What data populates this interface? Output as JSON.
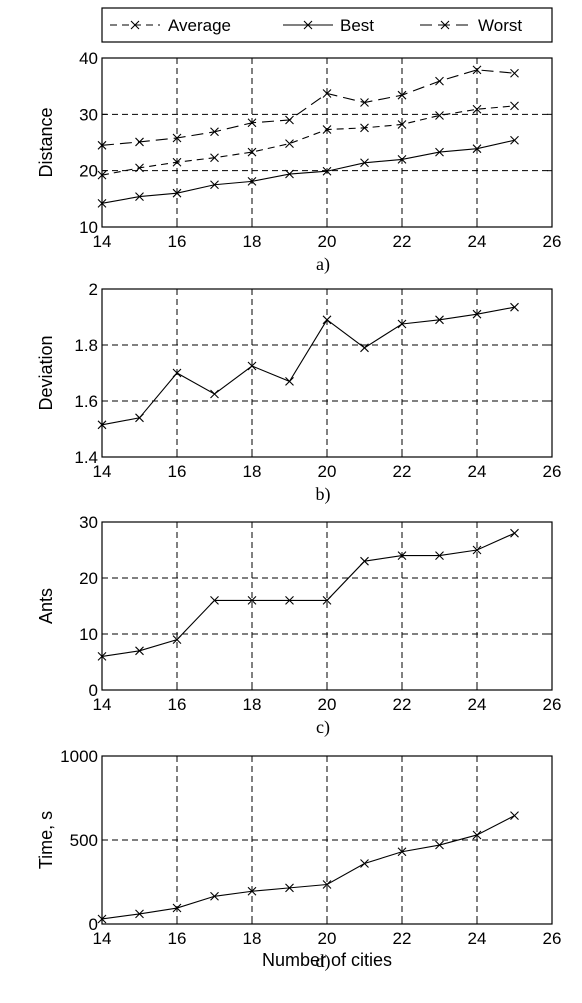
{
  "chart_data": [
    {
      "type": "line",
      "caption": "a)",
      "ylabel": "Distance",
      "xlim": [
        14,
        26
      ],
      "ylim": [
        10,
        40
      ],
      "xticks": [
        14,
        16,
        18,
        20,
        22,
        24,
        26
      ],
      "yticks": [
        10,
        20,
        30,
        40
      ],
      "grid": true,
      "legend": "top",
      "x": [
        14,
        15,
        16,
        17,
        18,
        19,
        20,
        21,
        22,
        23,
        24,
        25
      ],
      "series": [
        {
          "name": "Average",
          "style": "dashed",
          "values": [
            19.2,
            20.5,
            21.5,
            22.3,
            23.3,
            24.8,
            27.3,
            27.6,
            28.2,
            29.8,
            30.9,
            31.5
          ]
        },
        {
          "name": "Best",
          "style": "solid",
          "values": [
            14.2,
            15.4,
            16.0,
            17.5,
            18.1,
            19.4,
            19.9,
            21.4,
            22.0,
            23.3,
            23.9,
            25.4
          ]
        },
        {
          "name": "Worst",
          "style": "dashed-long",
          "values": [
            24.5,
            25.1,
            25.8,
            26.9,
            28.5,
            29.0,
            33.7,
            32.1,
            33.4,
            35.9,
            37.9,
            37.3
          ]
        }
      ]
    },
    {
      "type": "line",
      "caption": "b)",
      "ylabel": "Deviation",
      "xlim": [
        14,
        26
      ],
      "ylim": [
        1.4,
        2
      ],
      "xticks": [
        14,
        16,
        18,
        20,
        22,
        24,
        26
      ],
      "yticks": [
        1.4,
        1.6,
        1.8,
        2
      ],
      "ytick_labels": [
        "1.4",
        "1.6",
        "1.8",
        "2"
      ],
      "grid": true,
      "x": [
        14,
        15,
        16,
        17,
        18,
        19,
        20,
        21,
        22,
        23,
        24,
        25
      ],
      "series": [
        {
          "style": "solid",
          "values": [
            1.515,
            1.54,
            1.7,
            1.625,
            1.725,
            1.67,
            1.89,
            1.79,
            1.875,
            1.89,
            1.91,
            1.935
          ]
        }
      ]
    },
    {
      "type": "line",
      "caption": "c)",
      "ylabel": "Ants",
      "xlim": [
        14,
        26
      ],
      "ylim": [
        0,
        30
      ],
      "xticks": [
        14,
        16,
        18,
        20,
        22,
        24,
        26
      ],
      "yticks": [
        0,
        10,
        20,
        30
      ],
      "grid": true,
      "x": [
        14,
        15,
        16,
        17,
        18,
        19,
        20,
        21,
        22,
        23,
        24,
        25
      ],
      "series": [
        {
          "style": "solid",
          "values": [
            6,
            7,
            9,
            16,
            16,
            16,
            16,
            23,
            24,
            24,
            25,
            28
          ]
        }
      ]
    },
    {
      "type": "line",
      "caption": "d)",
      "ylabel": "Time, s",
      "xlabel": "Number of cities",
      "xlim": [
        14,
        26
      ],
      "ylim": [
        0,
        1000
      ],
      "xticks": [
        14,
        16,
        18,
        20,
        22,
        24,
        26
      ],
      "yticks": [
        0,
        500,
        1000
      ],
      "grid": true,
      "x": [
        14,
        15,
        16,
        17,
        18,
        19,
        20,
        21,
        22,
        23,
        24,
        25
      ],
      "series": [
        {
          "style": "solid",
          "values": [
            30,
            60,
            95,
            165,
            195,
            215,
            235,
            360,
            430,
            470,
            530,
            645
          ]
        }
      ]
    }
  ]
}
